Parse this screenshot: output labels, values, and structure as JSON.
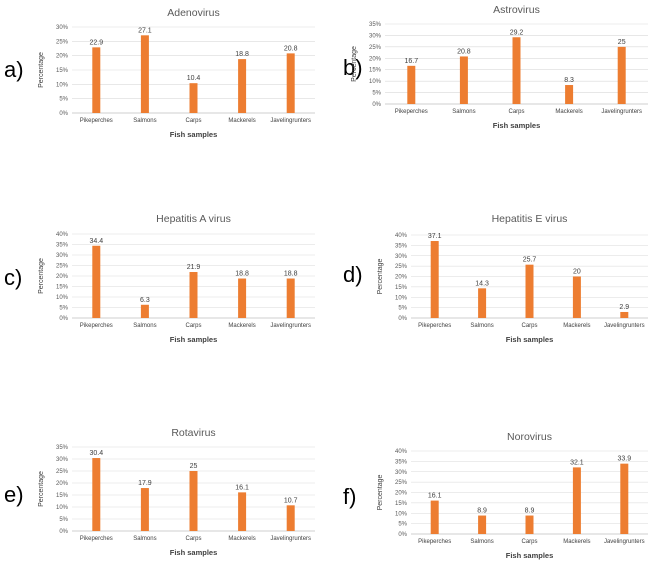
{
  "chart_data": [
    {
      "type": "bar",
      "panel_letter": "a)",
      "title": "Adenovirus",
      "xlabel": "Fish samples",
      "ylabel": "Percentage",
      "categories": [
        "Pikeperches",
        "Salmons",
        "Carps",
        "Mackerels",
        "Javelingrunters"
      ],
      "values": [
        22.9,
        27.1,
        10.4,
        18.8,
        20.8
      ],
      "value_labels": [
        "22.9",
        "27.1",
        "10.4",
        "18.8",
        "20.8"
      ],
      "yticks": [
        "0%",
        "5%",
        "10%",
        "15%",
        "20%",
        "25%",
        "30%"
      ],
      "ylim": [
        0,
        30
      ],
      "ystep": 5,
      "grid": true,
      "bar_color": "#ED7D31"
    },
    {
      "type": "bar",
      "panel_letter": "b)",
      "title": "Astrovirus",
      "xlabel": "Fish samples",
      "ylabel": "Percentage",
      "categories": [
        "Pikeperches",
        "Salmons",
        "Carps",
        "Mackerels",
        "Javelingrunters"
      ],
      "values": [
        16.7,
        20.8,
        29.2,
        8.3,
        25
      ],
      "value_labels": [
        "16.7",
        "20.8",
        "29.2",
        "8.3",
        "25"
      ],
      "yticks": [
        "0%",
        "5%",
        "10%",
        "15%",
        "20%",
        "25%",
        "30%",
        "35%"
      ],
      "ylim": [
        0,
        35
      ],
      "ystep": 5,
      "grid": true,
      "bar_color": "#ED7D31"
    },
    {
      "type": "bar",
      "panel_letter": "c)",
      "title": "Hepatitis A virus",
      "xlabel": "Fish samples",
      "ylabel": "Percentage",
      "categories": [
        "Pikeperches",
        "Salmons",
        "Carps",
        "Mackerels",
        "Javelingrunters"
      ],
      "values": [
        34.4,
        6.3,
        21.9,
        18.8,
        18.8
      ],
      "value_labels": [
        "34.4",
        "6.3",
        "21.9",
        "18.8",
        "18.8"
      ],
      "yticks": [
        "0%",
        "5%",
        "10%",
        "15%",
        "20%",
        "25%",
        "30%",
        "35%",
        "40%"
      ],
      "ylim": [
        0,
        40
      ],
      "ystep": 5,
      "grid": true,
      "bar_color": "#ED7D31"
    },
    {
      "type": "bar",
      "panel_letter": "d)",
      "title": "Hepatitis E virus",
      "xlabel": "Fish samples",
      "ylabel": "Percentage",
      "categories": [
        "Pikeperches",
        "Salmons",
        "Carps",
        "Mackerels",
        "Javelingrunters"
      ],
      "values": [
        37.1,
        14.3,
        25.7,
        20,
        2.9
      ],
      "value_labels": [
        "37.1",
        "14.3",
        "25.7",
        "20",
        "2.9"
      ],
      "yticks": [
        "0%",
        "5%",
        "10%",
        "15%",
        "20%",
        "25%",
        "30%",
        "35%",
        "40%"
      ],
      "ylim": [
        0,
        40
      ],
      "ystep": 5,
      "grid": true,
      "bar_color": "#ED7D31"
    },
    {
      "type": "bar",
      "panel_letter": "e)",
      "title": "Rotavirus",
      "xlabel": "Fish samples",
      "ylabel": "Percentage",
      "categories": [
        "Pikeperches",
        "Salmons",
        "Carps",
        "Mackerels",
        "Javelingrunters"
      ],
      "values": [
        30.4,
        17.9,
        25,
        16.1,
        10.7
      ],
      "value_labels": [
        "30.4",
        "17.9",
        "25",
        "16.1",
        "10.7"
      ],
      "yticks": [
        "0%",
        "5%",
        "10%",
        "15%",
        "20%",
        "25%",
        "30%",
        "35%"
      ],
      "ylim": [
        0,
        35
      ],
      "ystep": 5,
      "grid": true,
      "bar_color": "#ED7D31"
    },
    {
      "type": "bar",
      "panel_letter": "f)",
      "title": "Norovirus",
      "xlabel": "Fish samples",
      "ylabel": "Percentage",
      "categories": [
        "Pikeperches",
        "Salmons",
        "Carps",
        "Mackerels",
        "Javelingrunters"
      ],
      "values": [
        16.1,
        8.9,
        8.9,
        32.1,
        33.9
      ],
      "value_labels": [
        "16.1",
        "8.9",
        "8.9",
        "32.1",
        "33.9"
      ],
      "yticks": [
        "0%",
        "5%",
        "10%",
        "15%",
        "20%",
        "25%",
        "30%",
        "35%",
        "40%"
      ],
      "ylim": [
        0,
        40
      ],
      "ystep": 5,
      "grid": true,
      "bar_color": "#ED7D31"
    }
  ]
}
